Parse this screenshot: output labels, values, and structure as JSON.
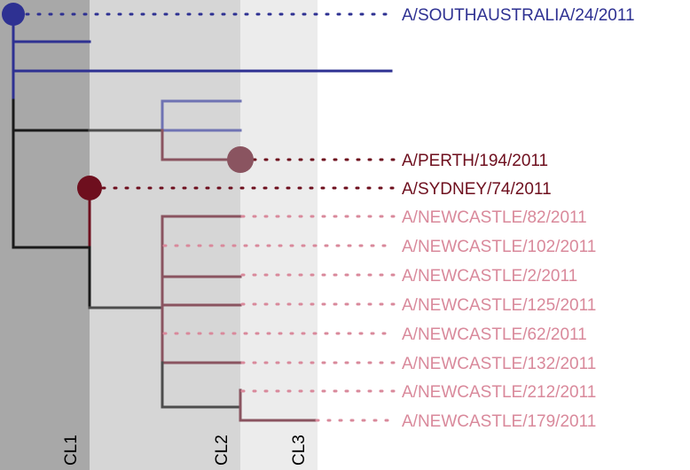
{
  "colors": {
    "band_cl1": "#a8a8a8",
    "band_cl2": "#d6d6d6",
    "band_cl3": "#ececec",
    "blue": "#2e3192",
    "blue_light": "#6f73b3",
    "black": "#1a1a1a",
    "dark": "#4d4d4d",
    "dark_red": "#6e0f1e",
    "mauve": "#8a5460",
    "pink": "#d9899b"
  },
  "bands": [
    {
      "label": "CL1"
    },
    {
      "label": "CL2"
    },
    {
      "label": "CL3"
    }
  ],
  "tips": [
    {
      "label": "A/SOUTHAUSTRALIA/24/2011",
      "color": "blue"
    },
    {
      "label": "A/PERTH/194/2011",
      "color": "dark_red"
    },
    {
      "label": "A/SYDNEY/74/2011",
      "color": "dark_red"
    },
    {
      "label": "A/NEWCASTLE/82/2011",
      "color": "pink"
    },
    {
      "label": "A/NEWCASTLE/102/2011",
      "color": "pink"
    },
    {
      "label": "A/NEWCASTLE/2/2011",
      "color": "pink"
    },
    {
      "label": "A/NEWCASTLE/125/2011",
      "color": "pink"
    },
    {
      "label": "A/NEWCASTLE/62/2011",
      "color": "pink"
    },
    {
      "label": "A/NEWCASTLE/132/2011",
      "color": "pink"
    },
    {
      "label": "A/NEWCASTLE/212/2011",
      "color": "pink"
    },
    {
      "label": "A/NEWCASTLE/179/2011",
      "color": "pink"
    }
  ]
}
